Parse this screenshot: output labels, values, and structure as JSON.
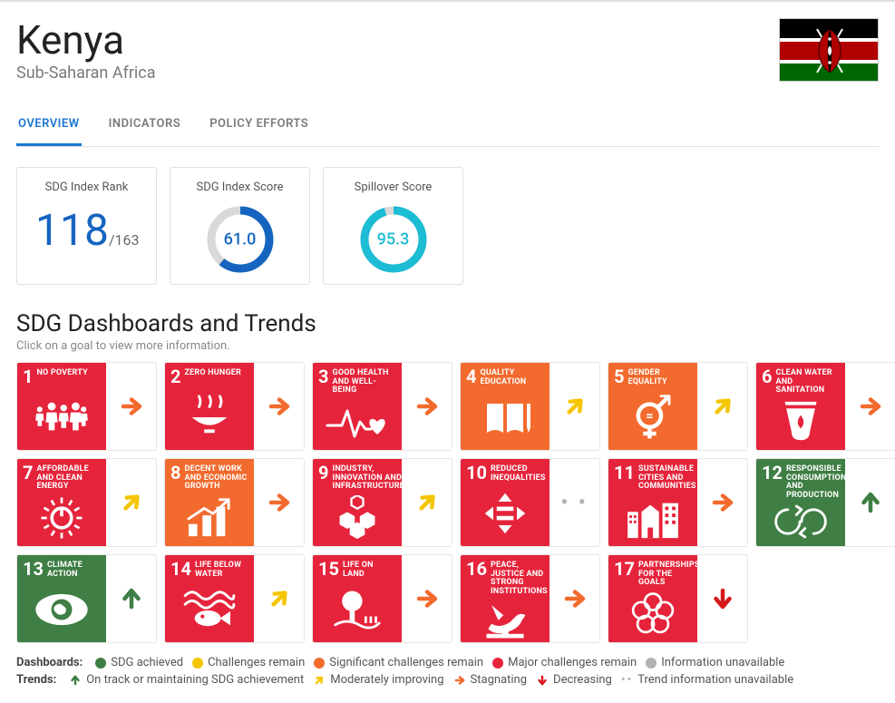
{
  "header": {
    "title": "Kenya",
    "region": "Sub-Saharan Africa",
    "flag": {
      "stripes": [
        "#000000",
        "#b00000",
        "#006600"
      ],
      "fimbriations": "#ffffff"
    }
  },
  "tabs": [
    {
      "label": "OVERVIEW",
      "active": true
    },
    {
      "label": "INDICATORS",
      "active": false
    },
    {
      "label": "POLICY EFFORTS",
      "active": false
    }
  ],
  "metrics": {
    "rank": {
      "title": "SDG Index Rank",
      "value": "118",
      "of": "/163"
    },
    "index_score": {
      "title": "SDG Index Score",
      "value": "61.0",
      "pct": 61.0,
      "color": "#1565c0",
      "track": "#d9d9d9"
    },
    "spillover": {
      "title": "Spillover Score",
      "value": "95.3",
      "pct": 95.3,
      "color": "#1cbcd4",
      "track": "#d9d9d9"
    }
  },
  "dashboards": {
    "title": "SDG Dashboards and Trends",
    "subtitle": "Click on a goal to view more information."
  },
  "trend_arrows": {
    "up": {
      "glyph": "↑",
      "color": "#3f7e44"
    },
    "mod": {
      "glyph": "↗",
      "color": "#f5c500"
    },
    "stag": {
      "glyph": "→",
      "color": "#f26a2e"
    },
    "down": {
      "glyph": "↓",
      "color": "#d7191c"
    },
    "none": {
      "glyph": "••",
      "color": "#b3b3b3"
    }
  },
  "goals": [
    {
      "num": "1",
      "label": "NO POVERTY",
      "bg": "#e5243b",
      "trend": "stag",
      "icon": "poverty"
    },
    {
      "num": "2",
      "label": "ZERO HUNGER",
      "bg": "#e5243b",
      "trend": "stag",
      "icon": "hunger"
    },
    {
      "num": "3",
      "label": "GOOD HEALTH AND WELL-BEING",
      "bg": "#e5243b",
      "trend": "stag",
      "icon": "health"
    },
    {
      "num": "4",
      "label": "QUALITY EDUCATION",
      "bg": "#f26a2e",
      "trend": "mod",
      "icon": "education"
    },
    {
      "num": "5",
      "label": "GENDER EQUALITY",
      "bg": "#f26a2e",
      "trend": "mod",
      "icon": "gender"
    },
    {
      "num": "6",
      "label": "CLEAN WATER AND SANITATION",
      "bg": "#e5243b",
      "trend": "stag",
      "icon": "water"
    },
    {
      "num": "7",
      "label": "AFFORDABLE AND CLEAN ENERGY",
      "bg": "#e5243b",
      "trend": "mod",
      "icon": "energy"
    },
    {
      "num": "8",
      "label": "DECENT WORK AND ECONOMIC GROWTH",
      "bg": "#f26a2e",
      "trend": "stag",
      "icon": "growth"
    },
    {
      "num": "9",
      "label": "INDUSTRY, INNOVATION AND INFRASTRUCTURE",
      "bg": "#e5243b",
      "trend": "mod",
      "icon": "industry"
    },
    {
      "num": "10",
      "label": "REDUCED INEQUALITIES",
      "bg": "#e5243b",
      "trend": "none",
      "icon": "inequality"
    },
    {
      "num": "11",
      "label": "SUSTAINABLE CITIES AND COMMUNITIES",
      "bg": "#e5243b",
      "trend": "stag",
      "icon": "cities"
    },
    {
      "num": "12",
      "label": "RESPONSIBLE CONSUMPTION AND PRODUCTION",
      "bg": "#3f7e44",
      "trend": "up",
      "icon": "consumption"
    },
    {
      "num": "13",
      "label": "CLIMATE ACTION",
      "bg": "#3f7e44",
      "trend": "up",
      "icon": "climate"
    },
    {
      "num": "14",
      "label": "LIFE BELOW WATER",
      "bg": "#e5243b",
      "trend": "mod",
      "icon": "belowwater"
    },
    {
      "num": "15",
      "label": "LIFE ON LAND",
      "bg": "#e5243b",
      "trend": "stag",
      "icon": "land"
    },
    {
      "num": "16",
      "label": "PEACE, JUSTICE AND STRONG INSTITUTIONS",
      "bg": "#e5243b",
      "trend": "stag",
      "icon": "peace"
    },
    {
      "num": "17",
      "label": "PARTNERSHIPS FOR THE GOALS",
      "bg": "#e5243b",
      "trend": "down",
      "icon": "partnerships"
    }
  ],
  "legend": {
    "dashboards_label": "Dashboards:",
    "dashboards": [
      {
        "color": "#3f7e44",
        "text": "SDG achieved"
      },
      {
        "color": "#f5c500",
        "text": "Challenges remain"
      },
      {
        "color": "#f26a2e",
        "text": "Significant challenges remain"
      },
      {
        "color": "#e5243b",
        "text": "Major challenges remain"
      },
      {
        "color": "#b3b3b3",
        "text": "Information unavailable"
      }
    ],
    "trends_label": "Trends:",
    "trends": [
      {
        "key": "up",
        "text": "On track or maintaining SDG achievement"
      },
      {
        "key": "mod",
        "text": "Moderately improving"
      },
      {
        "key": "stag",
        "text": "Stagnating"
      },
      {
        "key": "down",
        "text": "Decreasing"
      },
      {
        "key": "none",
        "text": "Trend information unavailable"
      }
    ]
  }
}
